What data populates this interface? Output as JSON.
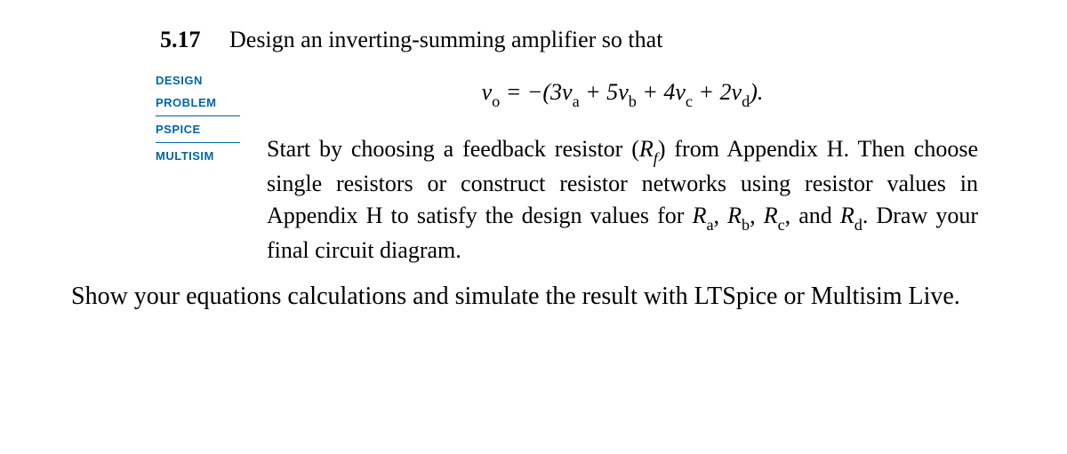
{
  "problem": {
    "number": "5.17",
    "title": "Design an inverting-summing amplifier so that"
  },
  "badges": {
    "design": "DESIGN",
    "design_problem": "PROBLEM",
    "pspice": "PSPICE",
    "multisim": "MULTISIM"
  },
  "equation": {
    "vo_var": "v",
    "vo_sub": "o",
    "equals": " = ",
    "neg": "−(3",
    "va_v": "v",
    "va_s": "a",
    "plus1": " + 5",
    "vb_v": "v",
    "vb_s": "b",
    "plus2": " + 4",
    "vc_v": "v",
    "vc_s": "c",
    "plus3": " + 2",
    "vd_v": "v",
    "vd_s": "d",
    "close": ")."
  },
  "body": {
    "p1a": "Start by choosing a feedback resistor (",
    "rf_r": "R",
    "rf_s": "f",
    "p1b": ") from Appendix H. Then choose single resistors or con­struct resistor networks using resistor values in Appendix H to satisfy the design values for ",
    "ra_r": "R",
    "ra_s": "a",
    "c1": ", ",
    "rb_r": "R",
    "rb_s": "b",
    "c2": ", ",
    "rc_r": "R",
    "rc_s": "c",
    "c3": ", and ",
    "rd_r": "R",
    "rd_s": "d",
    "p1c": ". Draw your final circuit diagram."
  },
  "footer": {
    "text": "Show your equations calculations and simulate the result with LTSpice or Multisim Live."
  },
  "colors": {
    "badge": "#0066a4",
    "text": "#000000",
    "background": "#ffffff"
  }
}
